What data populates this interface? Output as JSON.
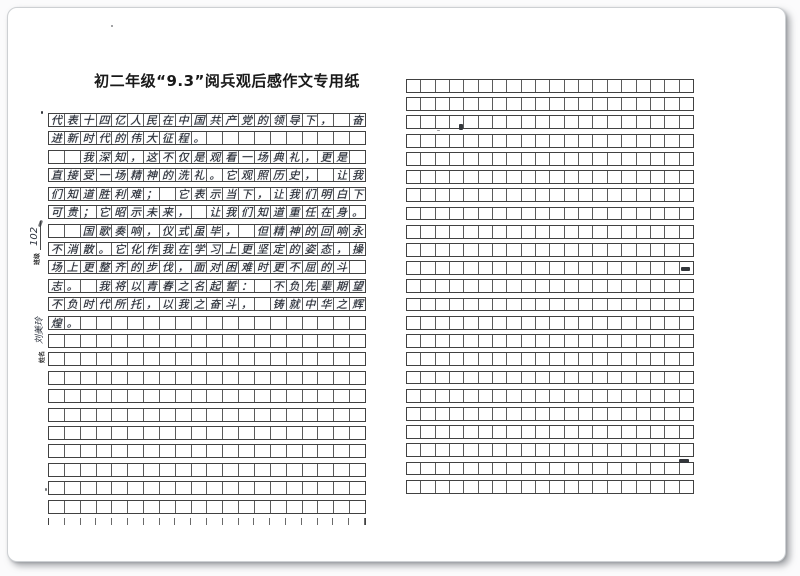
{
  "document": {
    "title": "初二年级“9.3”阅兵观后感作文专用纸",
    "margin_fields": {
      "class_label": "班级",
      "class_value": "102",
      "name_label": "姓名",
      "name_value": "刘美玲"
    },
    "left_page": {
      "rows": 22,
      "cols": 20,
      "cut_row": true,
      "essay_lines": [
        "代表十四亿人民在中国共产党的领导下， 奋",
        "进新时代的伟大征程。",
        "  我深知，这不仅是观看一场典礼，更是",
        "直接受一场精神的洗礼。它观照历史， 让我",
        "们知道胜利难； 它表示当下，让我们明白下",
        "可贵；它昭示未来， 让我们知道重任在身。",
        "  国歌奏响，仪式虽毕， 但精神的回响永",
        "不消散。它化作我在学习上更坚定的姿态，操",
        "场上更整齐的步伐，面对困难时更不屈的斗",
        "志。 我将以青春之名起誓： 不负先辈期望，",
        "不负时代所托，以我之奋斗， 铸就中华之辉",
        "煌。"
      ]
    },
    "right_page": {
      "rows": 23,
      "cols": 20,
      "cut_row": false,
      "essay_lines": []
    },
    "colors": {
      "paper": "#ffffff",
      "ink": "#2b303a",
      "grid_line": "#414141",
      "shadow": "#64686e"
    }
  }
}
